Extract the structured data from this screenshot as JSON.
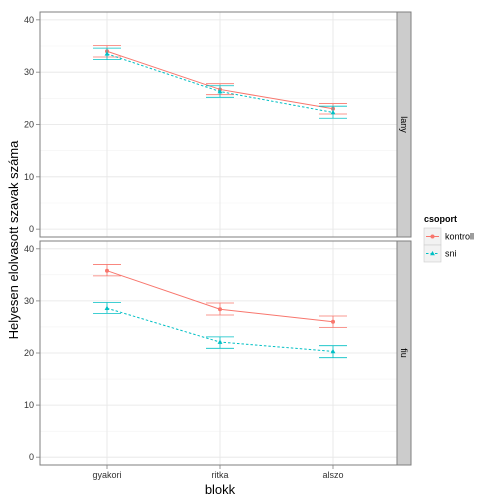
{
  "chart_data": {
    "type": "line",
    "xlabel": "blokk",
    "ylabel": "Helyesen elolvasott szavak száma",
    "categories": [
      "gyakori",
      "ritka",
      "alszo"
    ],
    "ylim": [
      -1.5,
      41.5
    ],
    "yticks": [
      0,
      10,
      20,
      30,
      40
    ],
    "grid": true,
    "legend": {
      "title": "csoport",
      "position": "right",
      "entries": [
        {
          "name": "kontroll",
          "color": "#F8766D",
          "marker": "circle",
          "line": "solid"
        },
        {
          "name": "sni",
          "color": "#00BFC4",
          "marker": "triangle",
          "line": "dashed"
        }
      ]
    },
    "panels": [
      {
        "strip": "lany",
        "series": [
          {
            "name": "kontroll",
            "values": [
              34.0,
              26.7,
              23.0
            ],
            "error_low": [
              32.9,
              25.7,
              22.0
            ],
            "error_high": [
              35.1,
              27.8,
              24.0
            ]
          },
          {
            "name": "sni",
            "values": [
              33.5,
              26.3,
              22.3
            ],
            "error_low": [
              32.4,
              25.2,
              21.2
            ],
            "error_high": [
              34.6,
              27.4,
              23.5
            ]
          }
        ]
      },
      {
        "strip": "fiu",
        "series": [
          {
            "name": "kontroll",
            "values": [
              35.8,
              28.4,
              26.0
            ],
            "error_low": [
              34.8,
              27.3,
              24.9
            ],
            "error_high": [
              37.0,
              29.6,
              27.1
            ]
          },
          {
            "name": "sni",
            "values": [
              28.6,
              22.1,
              20.3
            ],
            "error_low": [
              27.6,
              20.9,
              19.1
            ],
            "error_high": [
              29.7,
              23.1,
              21.4
            ]
          }
        ]
      }
    ]
  }
}
